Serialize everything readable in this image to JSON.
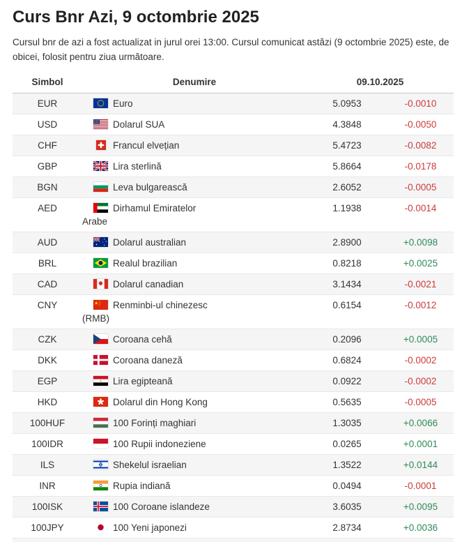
{
  "page": {
    "title": "Curs Bnr Azi, 9 octombrie 2025",
    "intro": "Cursul bnr de azi a fost actualizat in jurul orei 13:00. Cursul comunicat astăzi (9 octombrie 2025) este, de obicei, folosit pentru ziua următoare."
  },
  "table": {
    "headers": {
      "symbol": "Simbol",
      "name": "Denumire",
      "date": "09.10.2025"
    },
    "rows": [
      {
        "symbol": "EUR",
        "flag": "eu",
        "name": "Euro",
        "rate": "5.0953",
        "change": "-0.0010",
        "direction": "down"
      },
      {
        "symbol": "USD",
        "flag": "us",
        "name": "Dolarul SUA",
        "rate": "4.3848",
        "change": "-0.0050",
        "direction": "down"
      },
      {
        "symbol": "CHF",
        "flag": "ch",
        "name": "Francul elvețian",
        "rate": "5.4723",
        "change": "-0.0082",
        "direction": "down"
      },
      {
        "symbol": "GBP",
        "flag": "gb",
        "name": "Lira sterlină",
        "rate": "5.8664",
        "change": "-0.0178",
        "direction": "down"
      },
      {
        "symbol": "BGN",
        "flag": "bg",
        "name": "Leva bulgarească",
        "rate": "2.6052",
        "change": "-0.0005",
        "direction": "down"
      },
      {
        "symbol": "AED",
        "flag": "ae",
        "name": "Dirhamul Emiratelor\nArabe",
        "rate": "1.1938",
        "change": "-0.0014",
        "direction": "down"
      },
      {
        "symbol": "AUD",
        "flag": "au",
        "name": "Dolarul australian",
        "rate": "2.8900",
        "change": "+0.0098",
        "direction": "up"
      },
      {
        "symbol": "BRL",
        "flag": "br",
        "name": "Realul brazilian",
        "rate": "0.8218",
        "change": "+0.0025",
        "direction": "up"
      },
      {
        "symbol": "CAD",
        "flag": "ca",
        "name": "Dolarul canadian",
        "rate": "3.1434",
        "change": "-0.0021",
        "direction": "down"
      },
      {
        "symbol": "CNY",
        "flag": "cn",
        "name": "Renminbi-ul chinezesc\n(RMB)",
        "rate": "0.6154",
        "change": "-0.0012",
        "direction": "down"
      },
      {
        "symbol": "CZK",
        "flag": "cz",
        "name": "Coroana cehă",
        "rate": "0.2096",
        "change": "+0.0005",
        "direction": "up"
      },
      {
        "symbol": "DKK",
        "flag": "dk",
        "name": "Coroana daneză",
        "rate": "0.6824",
        "change": "-0.0002",
        "direction": "down"
      },
      {
        "symbol": "EGP",
        "flag": "eg",
        "name": "Lira egipteană",
        "rate": "0.0922",
        "change": "-0.0002",
        "direction": "down"
      },
      {
        "symbol": "HKD",
        "flag": "hk",
        "name": "Dolarul din Hong Kong",
        "rate": "0.5635",
        "change": "-0.0005",
        "direction": "down"
      },
      {
        "symbol": "100HUF",
        "flag": "hu",
        "name": "100 Forinți maghiari",
        "rate": "1.3035",
        "change": "+0.0066",
        "direction": "up"
      },
      {
        "symbol": "100IDR",
        "flag": "id",
        "name": "100 Rupii indoneziene",
        "rate": "0.0265",
        "change": "+0.0001",
        "direction": "up"
      },
      {
        "symbol": "ILS",
        "flag": "il",
        "name": "Shekelul israelian",
        "rate": "1.3522",
        "change": "+0.0144",
        "direction": "up"
      },
      {
        "symbol": "INR",
        "flag": "in",
        "name": "Rupia indiană",
        "rate": "0.0494",
        "change": "-0.0001",
        "direction": "down"
      },
      {
        "symbol": "100ISK",
        "flag": "is",
        "name": "100 Coroane islandeze",
        "rate": "3.6035",
        "change": "+0.0095",
        "direction": "up"
      },
      {
        "symbol": "100JPY",
        "flag": "jp",
        "name": "100 Yeni japonezi",
        "rate": "2.8734",
        "change": "+0.0036",
        "direction": "up"
      }
    ]
  },
  "colors": {
    "negative_change": "#cc3b3b",
    "positive_change": "#2e8b57",
    "row_alternate_bg": "#f5f5f5",
    "text": "#333333"
  }
}
